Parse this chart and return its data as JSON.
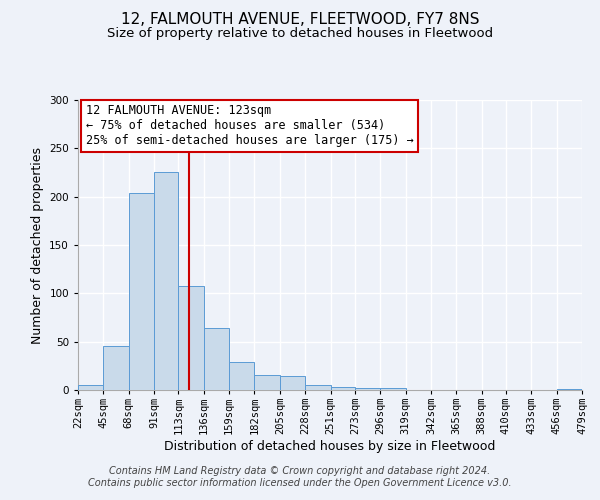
{
  "title": "12, FALMOUTH AVENUE, FLEETWOOD, FY7 8NS",
  "subtitle": "Size of property relative to detached houses in Fleetwood",
  "xlabel": "Distribution of detached houses by size in Fleetwood",
  "ylabel": "Number of detached properties",
  "bar_color": "#c9daea",
  "bar_edge_color": "#5b9bd5",
  "bin_edges": [
    22,
    45,
    68,
    91,
    113,
    136,
    159,
    182,
    205,
    228,
    251,
    273,
    296,
    319,
    342,
    365,
    388,
    410,
    433,
    456,
    479
  ],
  "bin_labels": [
    "22sqm",
    "45sqm",
    "68sqm",
    "91sqm",
    "113sqm",
    "136sqm",
    "159sqm",
    "182sqm",
    "205sqm",
    "228sqm",
    "251sqm",
    "273sqm",
    "296sqm",
    "319sqm",
    "342sqm",
    "365sqm",
    "388sqm",
    "410sqm",
    "433sqm",
    "456sqm",
    "479sqm"
  ],
  "counts": [
    5,
    46,
    204,
    226,
    108,
    64,
    29,
    16,
    15,
    5,
    3,
    2,
    2,
    0,
    0,
    0,
    0,
    0,
    0,
    1
  ],
  "property_size": 123,
  "vline_color": "#cc0000",
  "annotation_title": "12 FALMOUTH AVENUE: 123sqm",
  "annotation_line1": "← 75% of detached houses are smaller (534)",
  "annotation_line2": "25% of semi-detached houses are larger (175) →",
  "annotation_box_color": "#ffffff",
  "annotation_box_edge_color": "#cc0000",
  "ylim": [
    0,
    300
  ],
  "yticks": [
    0,
    50,
    100,
    150,
    200,
    250,
    300
  ],
  "background_color": "#eef2f9",
  "footer_line1": "Contains HM Land Registry data © Crown copyright and database right 2024.",
  "footer_line2": "Contains public sector information licensed under the Open Government Licence v3.0.",
  "grid_color": "#ffffff",
  "title_fontsize": 11,
  "subtitle_fontsize": 9.5,
  "axis_label_fontsize": 9,
  "tick_fontsize": 7.5,
  "annotation_fontsize": 8.5,
  "footer_fontsize": 7
}
